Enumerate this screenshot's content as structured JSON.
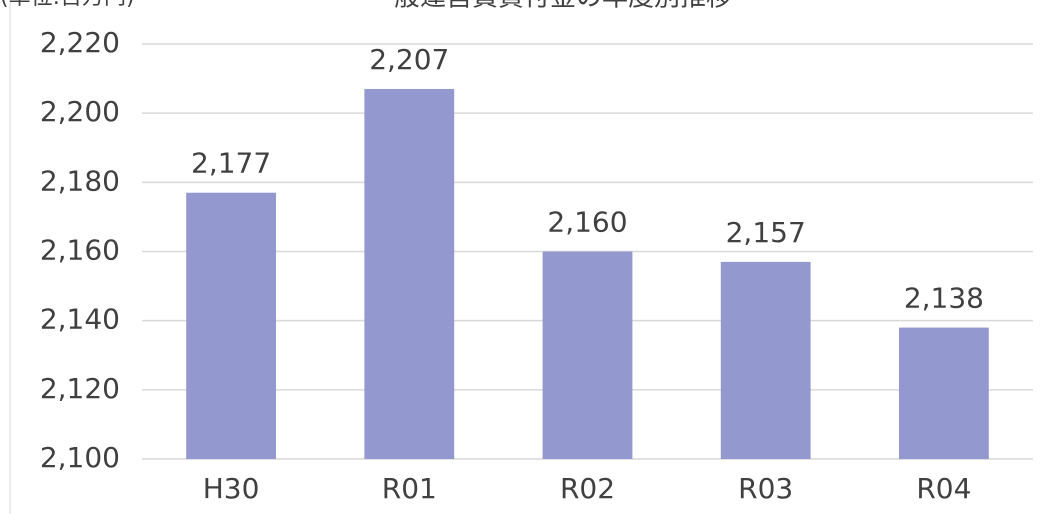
{
  "chart_data": {
    "type": "bar",
    "title": "一般運営費貸付金の年度別推移",
    "unit_label": "(単位:百万円)",
    "categories": [
      "H30",
      "R01",
      "R02",
      "R03",
      "R04"
    ],
    "values": [
      2177,
      2207,
      2160,
      2157,
      2138
    ],
    "value_labels": [
      "2,177",
      "2,207",
      "2,160",
      "2,157",
      "2,138"
    ],
    "color": "#9399cf",
    "ylim": [
      2100,
      2220
    ],
    "yticks": [
      {
        "value": 2100,
        "label": "2,100"
      },
      {
        "value": 2120,
        "label": "2,120"
      },
      {
        "value": 2140,
        "label": "2,140"
      },
      {
        "value": 2160,
        "label": "2,160"
      },
      {
        "value": 2180,
        "label": "2,180"
      },
      {
        "value": 2200,
        "label": "2,200"
      },
      {
        "value": 2220,
        "label": "2,220"
      }
    ],
    "grid": true
  }
}
